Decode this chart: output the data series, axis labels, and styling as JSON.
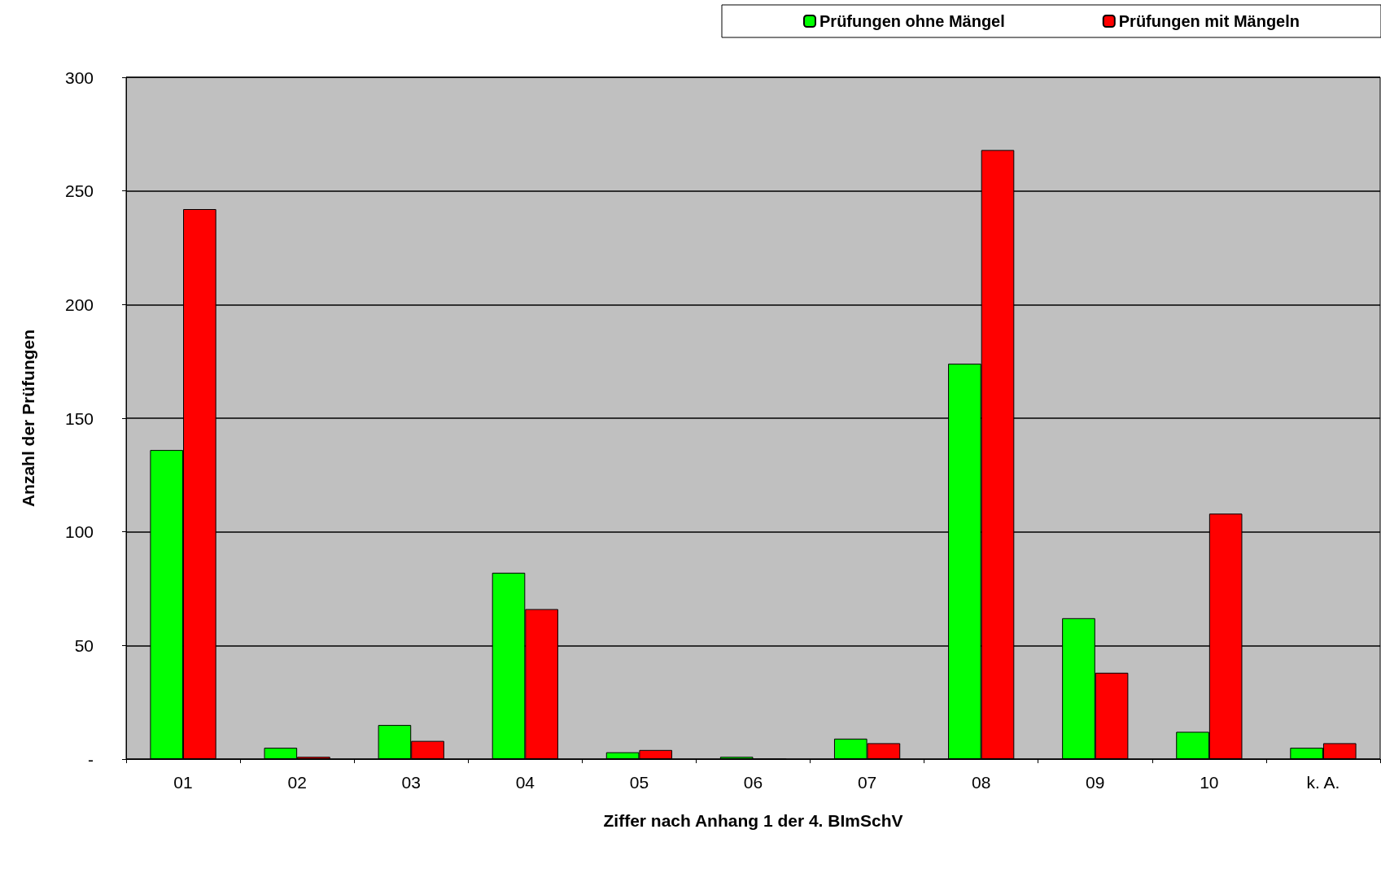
{
  "chart_data": {
    "type": "bar",
    "xlabel": "Ziffer nach Anhang 1 der 4. BImSchV",
    "ylabel": "Anzahl der Prüfungen",
    "categories": [
      "01",
      "02",
      "03",
      "04",
      "05",
      "06",
      "07",
      "08",
      "09",
      "10",
      "k. A."
    ],
    "series": [
      {
        "name": "Prüfungen ohne Mängel",
        "color": "#00ff00",
        "values": [
          136,
          5,
          15,
          82,
          3,
          1,
          9,
          174,
          62,
          12,
          5
        ]
      },
      {
        "name": "Prüfungen mit Mängeln",
        "color": "#ff0000",
        "values": [
          242,
          1,
          8,
          66,
          4,
          0,
          7,
          268,
          38,
          108,
          7
        ]
      }
    ],
    "ylim": [
      0,
      300
    ],
    "yticks": [
      {
        "value": 0,
        "label": "-"
      },
      50,
      100,
      150,
      200,
      250,
      300
    ],
    "grid": "y",
    "legend": "top right"
  }
}
